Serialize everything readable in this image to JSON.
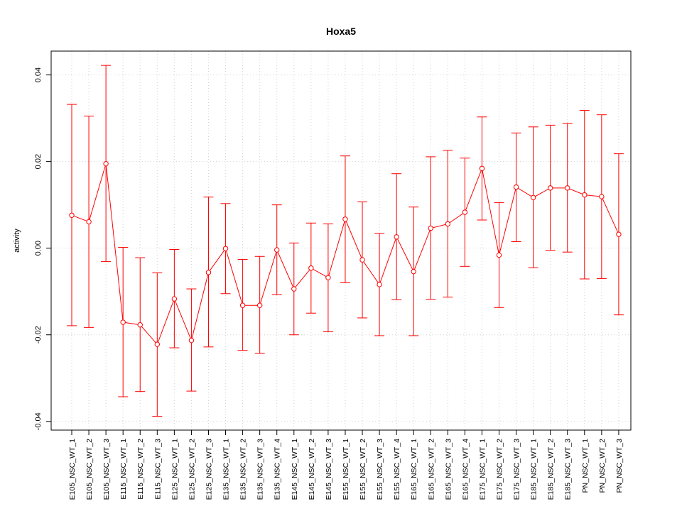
{
  "chart_data": {
    "type": "line",
    "title": "Hoxa5",
    "xlabel": "",
    "ylabel": "activity",
    "ylim": [
      -0.042,
      0.0455
    ],
    "yticks": [
      -0.04,
      -0.02,
      0.0,
      0.02,
      0.04
    ],
    "ytick_labels": [
      "-0.04",
      "-0.02",
      "0.00",
      "0.02",
      "0.04"
    ],
    "grid": true,
    "legend": "none",
    "colors": {
      "series": "#ff0000",
      "grid": "#d3d3d3",
      "axis": "#000000"
    },
    "categories": [
      "E105_NSC_WT_1",
      "E105_NSC_WT_2",
      "E105_NSC_WT_3",
      "E115_NSC_WT_1",
      "E115_NSC_WT_2",
      "E115_NSC_WT_3",
      "E125_NSC_WT_1",
      "E125_NSC_WT_2",
      "E125_NSC_WT_3",
      "E135_NSC_WT_1",
      "E135_NSC_WT_2",
      "E135_NSC_WT_3",
      "E135_NSC_WT_4",
      "E145_NSC_WT_1",
      "E145_NSC_WT_2",
      "E145_NSC_WT_3",
      "E155_NSC_WT_1",
      "E155_NSC_WT_2",
      "E155_NSC_WT_3",
      "E155_NSC_WT_4",
      "E165_NSC_WT_1",
      "E165_NSC_WT_2",
      "E165_NSC_WT_3",
      "E165_NSC_WT_4",
      "E175_NSC_WT_1",
      "E175_NSC_WT_2",
      "E175_NSC_WT_3",
      "E185_NSC_WT_1",
      "E185_NSC_WT_2",
      "E185_NSC_WT_3",
      "PN_NSC_WT_1",
      "PN_NSC_WT_2",
      "PN_NSC_WT_3"
    ],
    "series": [
      {
        "values": [
          0.0076,
          0.0061,
          0.0195,
          -0.0171,
          -0.0177,
          -0.0222,
          -0.0117,
          -0.0213,
          -0.0056,
          -0.0001,
          -0.0132,
          -0.0132,
          -0.0004,
          -0.0094,
          -0.0046,
          -0.0068,
          0.0067,
          -0.0027,
          -0.0084,
          0.0026,
          -0.0054,
          0.0046,
          0.0056,
          0.0083,
          0.0184,
          -0.0016,
          0.0141,
          0.0117,
          0.0139,
          0.0139,
          0.0123,
          0.0119,
          0.0032
        ],
        "upper": [
          0.0332,
          0.0305,
          0.0422,
          0.0002,
          -0.0022,
          -0.0057,
          -0.0003,
          -0.0094,
          0.0118,
          0.0103,
          -0.0026,
          -0.0019,
          0.01,
          0.0012,
          0.0058,
          0.0056,
          0.0213,
          0.0107,
          0.0034,
          0.0172,
          0.0095,
          0.0211,
          0.0226,
          0.0208,
          0.0303,
          0.0105,
          0.0266,
          0.028,
          0.0284,
          0.0288,
          0.0318,
          0.0308,
          0.0218
        ],
        "lower": [
          -0.0179,
          -0.0183,
          -0.0031,
          -0.0343,
          -0.0331,
          -0.0388,
          -0.023,
          -0.033,
          -0.0228,
          -0.0105,
          -0.0236,
          -0.0243,
          -0.0107,
          -0.02,
          -0.015,
          -0.0193,
          -0.008,
          -0.0161,
          -0.0202,
          -0.0119,
          -0.0202,
          -0.0118,
          -0.0113,
          -0.0042,
          0.0065,
          -0.0137,
          0.0015,
          -0.0045,
          -0.0005,
          -0.0009,
          -0.0071,
          -0.007,
          -0.0154
        ]
      }
    ]
  }
}
